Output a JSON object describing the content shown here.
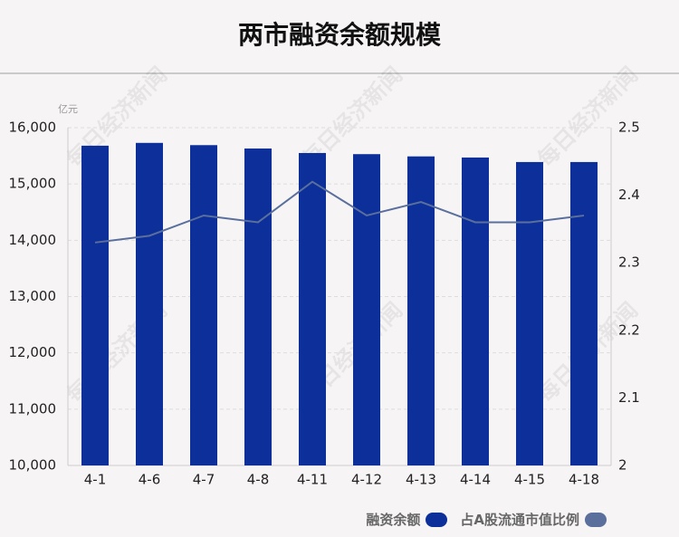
{
  "chart_data": {
    "type": "bar",
    "title": "两市融资余额规模",
    "y_unit": "亿元",
    "watermark": "每日经济新闻",
    "categories": [
      "4-1",
      "4-6",
      "4-7",
      "4-8",
      "4-11",
      "4-12",
      "4-13",
      "4-14",
      "4-15",
      "4-18"
    ],
    "series": [
      {
        "name": "融资余额",
        "type": "bar",
        "color": "#0d2f9a",
        "values": [
          15680,
          15730,
          15690,
          15630,
          15550,
          15530,
          15490,
          15470,
          15390,
          15390
        ]
      },
      {
        "name": "占A股流通市值比例",
        "type": "line",
        "axis": "y2",
        "color": "#5a6f9c",
        "values": [
          2.33,
          2.34,
          2.37,
          2.36,
          2.42,
          2.37,
          2.39,
          2.36,
          2.36,
          2.37
        ]
      }
    ],
    "ylim": [
      10000,
      16000
    ],
    "yticks": [
      {
        "value": 10000,
        "label": "10,000"
      },
      {
        "value": 11000,
        "label": "11,000"
      },
      {
        "value": 12000,
        "label": "12,000"
      },
      {
        "value": 13000,
        "label": "13,000"
      },
      {
        "value": 14000,
        "label": "14,000"
      },
      {
        "value": 15000,
        "label": "15,000"
      },
      {
        "value": 16000,
        "label": "16,000"
      }
    ],
    "y2lim": [
      2,
      2.5
    ],
    "y2ticks": [
      2,
      2.1,
      2.2,
      2.3,
      2.4,
      2.5
    ],
    "grid": true
  }
}
